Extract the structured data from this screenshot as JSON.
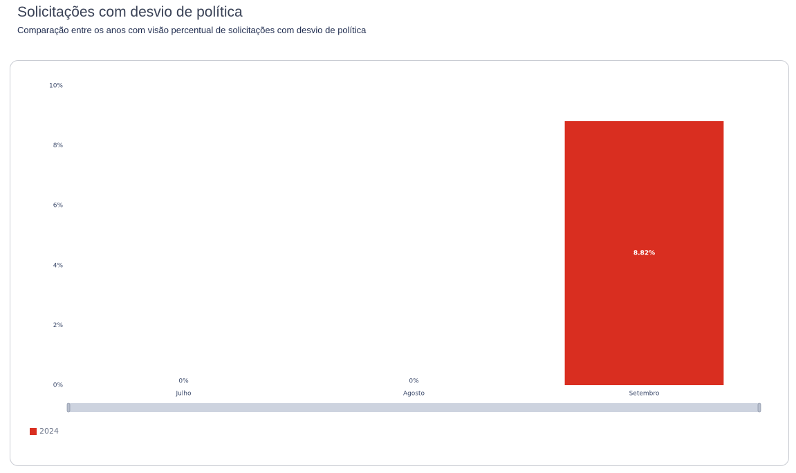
{
  "chart_data": {
    "type": "bar",
    "title": "Solicitações com desvio de política",
    "subtitle": "Comparação entre os anos com visão percentual de solicitações com desvio de política",
    "categories": [
      "Julho",
      "Agosto",
      "Setembro"
    ],
    "series": [
      {
        "name": "2024",
        "color": "#d92e20",
        "values": [
          0,
          0,
          8.82
        ],
        "value_labels": [
          "0%",
          "0%",
          "8.82%"
        ]
      }
    ],
    "ylim": [
      0,
      10
    ],
    "yticks": [
      {
        "value": 0,
        "label": "0%"
      },
      {
        "value": 2,
        "label": "2%"
      },
      {
        "value": 4,
        "label": "4%"
      },
      {
        "value": 6,
        "label": "6%"
      },
      {
        "value": 8,
        "label": "8%"
      },
      {
        "value": 10,
        "label": "10%"
      }
    ],
    "grid": false,
    "legend": "bottom-left"
  }
}
